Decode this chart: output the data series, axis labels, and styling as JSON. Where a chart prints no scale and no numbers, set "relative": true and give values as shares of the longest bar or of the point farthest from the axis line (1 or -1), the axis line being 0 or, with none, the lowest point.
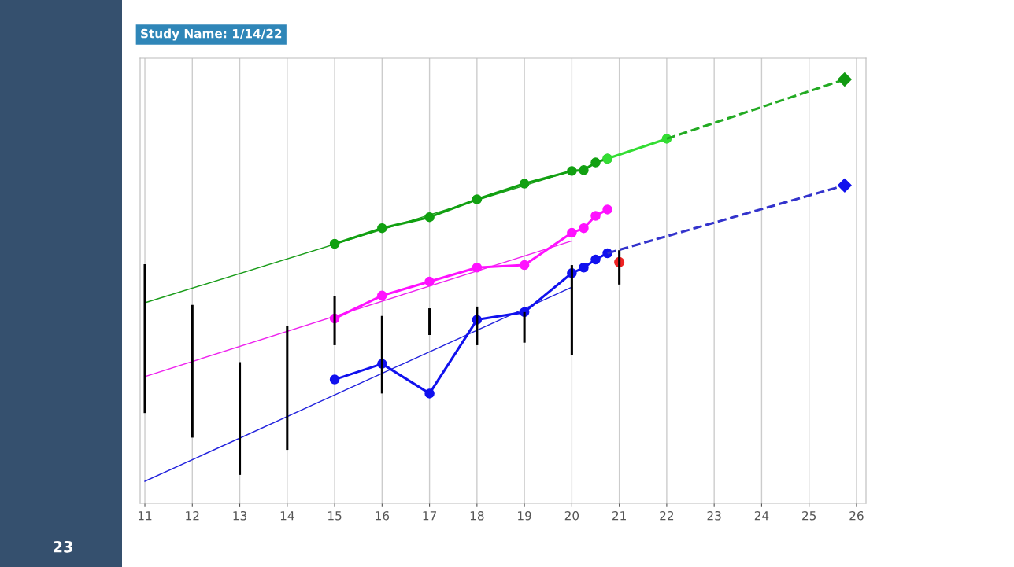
{
  "chart_data": {
    "type": "line",
    "title": "Study Name: 1/14/22",
    "relative": true,
    "xlim": [
      10.9,
      26.2
    ],
    "xticks": [
      11,
      12,
      13,
      14,
      15,
      16,
      17,
      18,
      19,
      20,
      21,
      22,
      23,
      24,
      25,
      26
    ],
    "grid": "x",
    "annotations": [
      "23"
    ],
    "series": [
      {
        "color": "#000000",
        "x": [
          11,
          11
        ],
        "values": [
          0.213,
          0.564
        ]
      },
      {
        "color": "#000000",
        "x": [
          12,
          12
        ],
        "values": [
          0.155,
          0.468
        ]
      },
      {
        "color": "#000000",
        "x": [
          13,
          13
        ],
        "values": [
          0.067,
          0.333
        ]
      },
      {
        "color": "#000000",
        "x": [
          14,
          14
        ],
        "values": [
          0.126,
          0.418
        ]
      },
      {
        "color": "#000000",
        "x": [
          15,
          15
        ],
        "values": [
          0.373,
          0.488
        ]
      },
      {
        "color": "#000000",
        "x": [
          16,
          16
        ],
        "values": [
          0.259,
          0.442
        ]
      },
      {
        "color": "#000000",
        "x": [
          17,
          17
        ],
        "values": [
          0.397,
          0.46
        ]
      },
      {
        "color": "#000000",
        "x": [
          18,
          18
        ],
        "values": [
          0.373,
          0.464
        ]
      },
      {
        "color": "#000000",
        "x": [
          19,
          19
        ],
        "values": [
          0.379,
          0.451
        ]
      },
      {
        "color": "#000000",
        "x": [
          20,
          20
        ],
        "values": [
          0.349,
          0.562
        ]
      },
      {
        "color": "#000000",
        "x": [
          21,
          21
        ],
        "values": [
          0.516,
          0.597
        ]
      },
      {
        "color": "#1a9c1a",
        "x": [
          11,
          20
        ],
        "values": [
          0.473,
          0.784
        ],
        "line_style": "solid"
      },
      {
        "color": "#ee22ee",
        "x": [
          11,
          20
        ],
        "values": [
          0.299,
          0.619
        ],
        "line_style": "solid"
      },
      {
        "color": "#2222dd",
        "x": [
          11,
          20
        ],
        "values": [
          0.052,
          0.51
        ],
        "line_style": "solid"
      },
      {
        "type": "line",
        "color": "#11a011",
        "x": [
          15,
          16,
          17,
          18,
          19,
          20,
          20.25,
          20.5,
          20.75
        ],
        "values": [
          0.612,
          0.649,
          0.675,
          0.717,
          0.754,
          0.784,
          0.786,
          0.804,
          0.813
        ],
        "marker": "circle",
        "line_style": "solid"
      },
      {
        "type": "line",
        "color": "#33dd33",
        "x": [
          20.75,
          22
        ],
        "values": [
          0.813,
          0.86
        ],
        "marker": "circle",
        "line_style": "solid"
      },
      {
        "color": "#22aa22",
        "x": [
          22,
          25.75
        ],
        "values": [
          0.86,
          1
        ],
        "line_style": "dashed"
      },
      {
        "type": "scatter",
        "color": "#119911",
        "x": [
          25.75
        ],
        "values": [
          1
        ],
        "marker": "diamond"
      },
      {
        "type": "line",
        "color": "#ff11ff",
        "x": [
          15,
          16,
          17,
          18,
          19,
          20,
          20.25,
          20.5,
          20.75
        ],
        "values": [
          0.436,
          0.49,
          0.523,
          0.556,
          0.562,
          0.638,
          0.649,
          0.678,
          0.693
        ],
        "marker": "circle",
        "line_style": "solid"
      },
      {
        "type": "line",
        "color": "#1111ee",
        "x": [
          15,
          16,
          17,
          18,
          19,
          20,
          20.25,
          20.5,
          20.75
        ],
        "values": [
          0.292,
          0.329,
          0.259,
          0.433,
          0.451,
          0.543,
          0.556,
          0.575,
          0.59
        ],
        "marker": "circle",
        "line_style": "solid"
      },
      {
        "color": "#3333cc",
        "x": [
          20.75,
          25.75
        ],
        "values": [
          0.59,
          0.75
        ],
        "line_style": "dashed"
      },
      {
        "type": "scatter",
        "color": "#1111ee",
        "x": [
          25.75
        ],
        "values": [
          0.75
        ],
        "marker": "diamond"
      },
      {
        "type": "scatter",
        "color": "#ee2222",
        "x": [
          21
        ],
        "values": [
          0.569
        ],
        "marker": "circle"
      }
    ]
  }
}
